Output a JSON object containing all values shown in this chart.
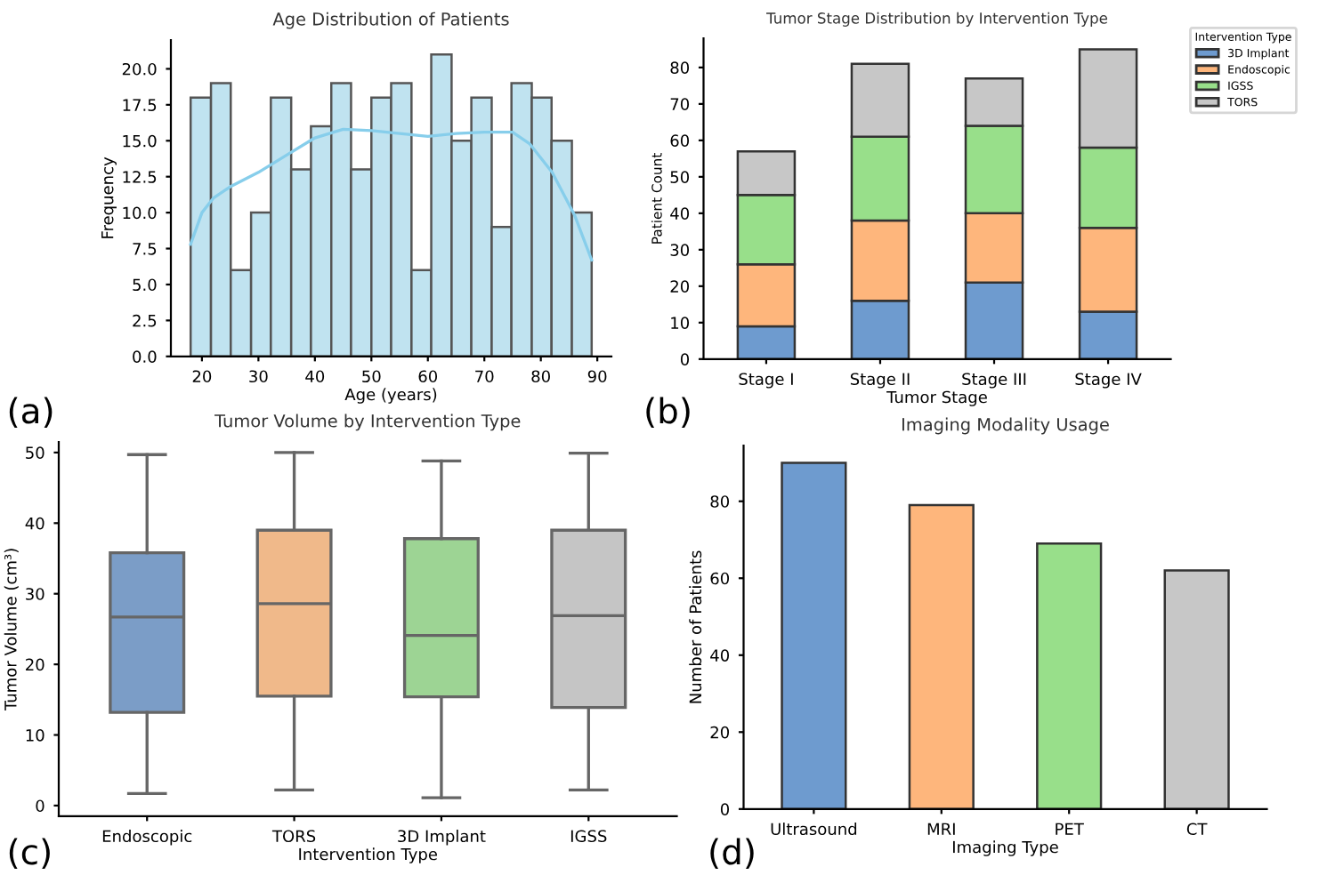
{
  "chart_data": [
    {
      "type": "histogram",
      "title": "Age Distribution of Patients",
      "xlabel": "Age (years)",
      "ylabel": "Frequency",
      "bins": [
        18.0,
        21.6,
        25.1,
        28.7,
        32.2,
        35.8,
        39.3,
        42.9,
        46.4,
        50.0,
        53.5,
        57.1,
        60.6,
        64.2,
        67.7,
        71.3,
        74.8,
        78.4,
        81.9,
        85.5,
        89.0
      ],
      "series": [
        {
          "type": "histogram",
          "color": "#c0e3f0",
          "values": [
            18,
            19,
            6,
            10,
            18,
            13,
            16,
            19,
            13,
            18,
            19,
            6,
            21,
            15,
            18,
            9,
            19,
            18,
            15,
            10
          ]
        },
        {
          "type": "line",
          "color": "#87ceeb",
          "x": [
            18,
            20,
            22,
            25,
            30,
            35,
            40,
            45,
            50,
            55,
            60,
            65,
            70,
            75,
            78,
            82,
            86,
            89
          ],
          "values": [
            7.8,
            10,
            11,
            11.8,
            12.8,
            14.0,
            15.2,
            15.8,
            15.7,
            15.5,
            15.3,
            15.5,
            15.6,
            15.6,
            14.8,
            12.8,
            9.8,
            6.7
          ]
        }
      ],
      "xlim": [
        14.5,
        92.5
      ],
      "xticks": [
        20,
        30,
        40,
        50,
        60,
        70,
        80,
        90
      ],
      "ylim": [
        0,
        22
      ],
      "yticks": [
        {
          "value": 0,
          "label": "0.0"
        },
        {
          "value": 2.5,
          "label": "2.5"
        },
        {
          "value": 5,
          "label": "5.0"
        },
        {
          "value": 7.5,
          "label": "7.5"
        },
        {
          "value": 10,
          "label": "10.0"
        },
        {
          "value": 12.5,
          "label": "12.5"
        },
        {
          "value": 15,
          "label": "15.0"
        },
        {
          "value": 17.5,
          "label": "17.5"
        },
        {
          "value": 20,
          "label": "20.0"
        }
      ],
      "annotations": [
        "(a)"
      ]
    },
    {
      "type": "bar",
      "stacked": true,
      "title": "Tumor Stage Distribution by Intervention Type",
      "xlabel": "Tumor Stage",
      "ylabel": "Patient Count",
      "categories": [
        "Stage I",
        "Stage II",
        "Stage III",
        "Stage IV"
      ],
      "series": [
        {
          "name": "3D Implant",
          "color": "#6e9bcf",
          "values": [
            9,
            16,
            21,
            13
          ]
        },
        {
          "name": "Endoscopic",
          "color": "#feb67c",
          "values": [
            17,
            22,
            19,
            23
          ]
        },
        {
          "name": "IGSS",
          "color": "#98df8a",
          "values": [
            19,
            23,
            24,
            22
          ]
        },
        {
          "name": "TORS",
          "color": "#c7c7c7",
          "values": [
            12,
            20,
            13,
            27
          ]
        }
      ],
      "legend_title": "Intervention Type",
      "legend": "top right",
      "ylim": [
        0,
        88
      ],
      "yticks": [
        0,
        10,
        20,
        30,
        40,
        50,
        60,
        70,
        80
      ],
      "annotations": [
        "(b)"
      ]
    },
    {
      "type": "box",
      "title": "Tumor Volume by Intervention Type",
      "xlabel": "Intervention Type",
      "ylabel": "Tumor Volume (cm³)",
      "categories": [
        "Endoscopic",
        "TORS",
        "3D Implant",
        "IGSS"
      ],
      "colors": [
        "#7b9dc7",
        "#f0b98a",
        "#9dd494",
        "#c5c5c5"
      ],
      "boxes": [
        {
          "low": 1.7,
          "q1": 13.2,
          "median": 26.7,
          "q3": 35.8,
          "high": 49.7
        },
        {
          "low": 2.2,
          "q1": 15.5,
          "median": 28.6,
          "q3": 39.0,
          "high": 50.0
        },
        {
          "low": 1.1,
          "q1": 15.4,
          "median": 24.1,
          "q3": 37.8,
          "high": 48.8
        },
        {
          "low": 2.2,
          "q1": 13.9,
          "median": 26.9,
          "q3": 39.0,
          "high": 49.9
        }
      ],
      "ylim": [
        -1.5,
        51.5
      ],
      "yticks": [
        0,
        10,
        20,
        30,
        40,
        50
      ],
      "annotations": [
        "(c)"
      ]
    },
    {
      "type": "bar",
      "title": "Imaging Modality Usage",
      "xlabel": "Imaging Type",
      "ylabel": "Number of Patients",
      "categories": [
        "Ultrasound",
        "MRI",
        "PET",
        "CT"
      ],
      "values": [
        90,
        79,
        69,
        62
      ],
      "colors": [
        "#6e9bcf",
        "#feb67c",
        "#98df8a",
        "#c7c7c7"
      ],
      "ylim": [
        0,
        94.5
      ],
      "yticks": [
        0,
        20,
        40,
        60,
        80
      ],
      "annotations": [
        "(d)"
      ]
    }
  ]
}
